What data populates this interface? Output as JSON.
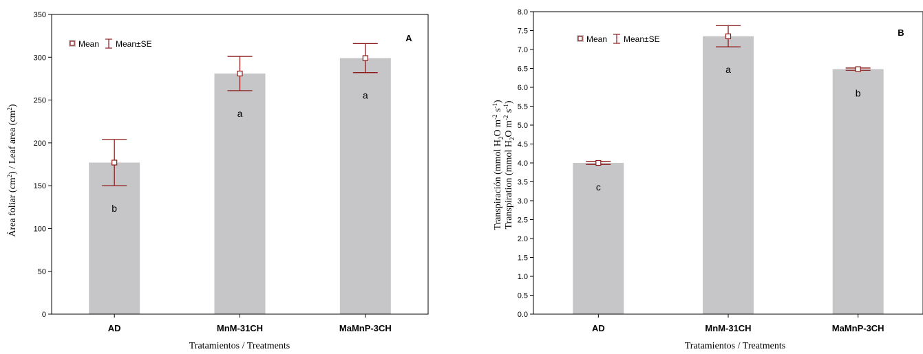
{
  "chart_data": [
    {
      "panel_label": "A",
      "type": "bar",
      "categories": [
        "AD",
        "MnM-31CH",
        "MaMnP-3CH"
      ],
      "series": [
        {
          "values": [
            177,
            281,
            299
          ],
          "se": [
            27,
            20,
            17
          ]
        }
      ],
      "letters": [
        "b",
        "a",
        "a"
      ],
      "ylabel_parts": [
        "Área foliar (cm",
        "2",
        ") / Leaf area (cm",
        "2",
        ")"
      ],
      "xlabel": "Tratamientos / Treatments",
      "ylim": [
        0,
        350
      ],
      "yticks": [
        0,
        50,
        100,
        150,
        200,
        250,
        300,
        350
      ],
      "ytick_labels": [
        "0",
        "50",
        "100",
        "150",
        "200",
        "250",
        "300",
        "350"
      ],
      "legend": {
        "mean_label": "Mean",
        "se_label": "Mean±SE",
        "position": "top-left"
      }
    },
    {
      "panel_label": "B",
      "type": "bar",
      "categories": [
        "AD",
        "MnM-31CH",
        "MaMnP-3CH"
      ],
      "series": [
        {
          "values": [
            4.0,
            7.35,
            6.48
          ],
          "se": [
            0.04,
            0.28,
            0.03
          ]
        }
      ],
      "letters": [
        "c",
        "a",
        "b"
      ],
      "ylabel_line1_parts": [
        "Transpiración (mmol H",
        "2",
        "O m",
        "-2",
        " s",
        "-1",
        ")"
      ],
      "ylabel_line2_parts": [
        "Transpiration (mmol H",
        "2",
        "O m",
        "-2",
        " s",
        "-1",
        ")"
      ],
      "xlabel": "Tratamientos / Treatments",
      "ylim": [
        0,
        8
      ],
      "yticks": [
        0,
        0.5,
        1,
        1.5,
        2,
        2.5,
        3,
        3.5,
        4,
        4.5,
        5,
        5.5,
        6,
        6.5,
        7,
        7.5,
        8
      ],
      "ytick_labels": [
        "0.0",
        "0.5",
        "1.0",
        "1.5",
        "2.0",
        "2.5",
        "3.0",
        "3.5",
        "4.0",
        "4.5",
        "5.0",
        "5.5",
        "6.0",
        "6.5",
        "7.0",
        "7.5",
        "8.0"
      ],
      "legend": {
        "mean_label": "Mean",
        "se_label": "Mean±SE",
        "position": "top-left"
      }
    }
  ],
  "colors": {
    "bar": "#c6c6c8",
    "error": "#8b1a1a",
    "axis": "#000000"
  }
}
